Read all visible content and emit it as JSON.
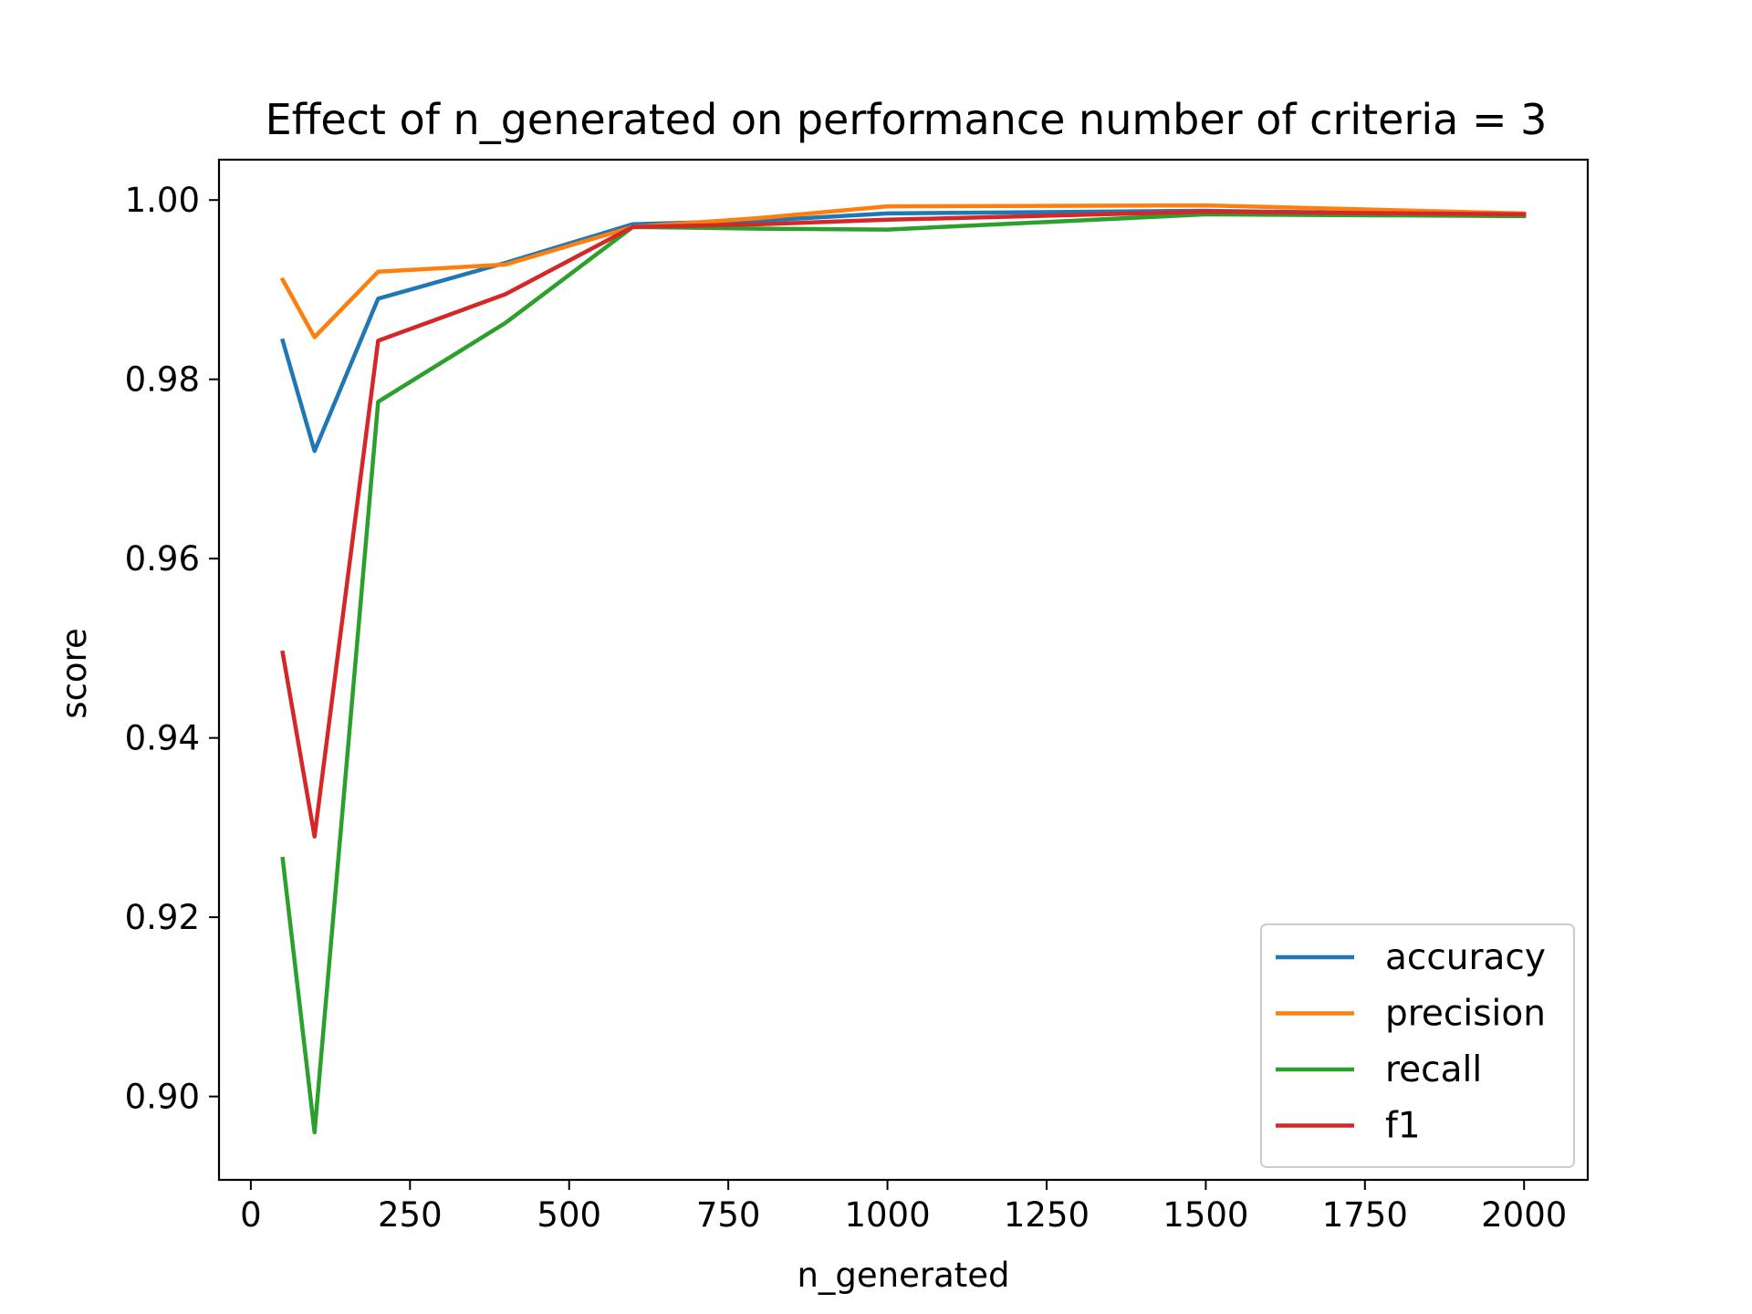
{
  "chart_data": {
    "type": "line",
    "title": "Effect of n_generated on performance number of criteria = 3",
    "xlabel": "n_generated",
    "ylabel": "score",
    "x": [
      50,
      100,
      200,
      400,
      600,
      800,
      1000,
      1500,
      2000
    ],
    "xlim": [
      -50,
      2100
    ],
    "ylim": [
      0.8907,
      1.0045
    ],
    "xticks": [
      0,
      250,
      500,
      750,
      1000,
      1250,
      1500,
      1750,
      2000
    ],
    "xtick_labels": [
      "0",
      "250",
      "500",
      "750",
      "1000",
      "1250",
      "1500",
      "1750",
      "2000"
    ],
    "yticks": [
      0.9,
      0.92,
      0.94,
      0.96,
      0.98,
      1.0
    ],
    "ytick_labels": [
      "0.90",
      "0.92",
      "0.94",
      "0.96",
      "0.98",
      "1.00"
    ],
    "grid": false,
    "legend_position": "lower-right",
    "series": [
      {
        "name": "accuracy",
        "color": "#1f77b4",
        "values": [
          0.9843,
          0.972,
          0.989,
          0.993,
          0.9973,
          0.9977,
          0.9985,
          0.9988,
          0.9983
        ]
      },
      {
        "name": "precision",
        "color": "#ff7f0e",
        "values": [
          0.9911,
          0.9847,
          0.992,
          0.9928,
          0.997,
          0.998,
          0.9993,
          0.9994,
          0.9985
        ]
      },
      {
        "name": "recall",
        "color": "#2ca02c",
        "values": [
          0.9265,
          0.896,
          0.9775,
          0.9863,
          0.997,
          0.9968,
          0.9967,
          0.9984,
          0.9982
        ]
      },
      {
        "name": "f1",
        "color": "#d62728",
        "values": [
          0.9495,
          0.929,
          0.9843,
          0.9895,
          0.997,
          0.9973,
          0.9978,
          0.9987,
          0.9984
        ]
      }
    ]
  }
}
